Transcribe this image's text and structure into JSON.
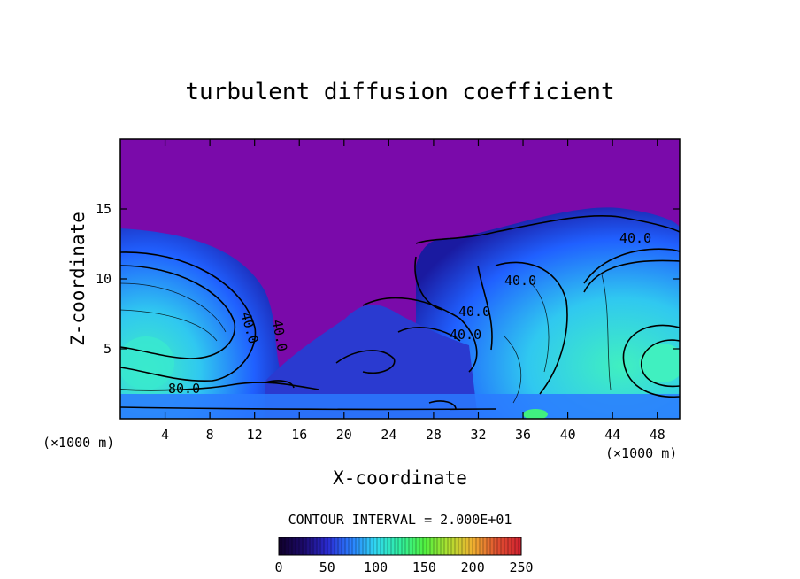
{
  "chart_data": {
    "type": "heatmap",
    "title": "turbulent diffusion coefficient",
    "xlabel": "X-coordinate",
    "ylabel": "Z-coordinate",
    "x_unit": "(×1000 m)",
    "y_unit": "(×1000 m)",
    "xlim": [
      0,
      50
    ],
    "ylim": [
      0,
      20
    ],
    "x_ticks": [
      4,
      8,
      12,
      16,
      20,
      24,
      28,
      32,
      36,
      40,
      44,
      48
    ],
    "y_ticks": [
      5,
      10,
      15
    ],
    "contour_interval_text": "CONTOUR INTERVAL = 2.000E+01",
    "contour_labels": [
      {
        "text": "80.0",
        "x": 6.3,
        "z": 2.2
      },
      {
        "text": "40.0",
        "x": 11.5,
        "z": 7.5
      },
      {
        "text": "40.0",
        "x": 13.8,
        "z": 7.0
      },
      {
        "text": "40.0",
        "x": 35.5,
        "z": 10.0
      },
      {
        "text": "40.0",
        "x": 31.0,
        "z": 7.7
      },
      {
        "text": "40.0",
        "x": 30.0,
        "z": 6.0
      },
      {
        "text": "40.0",
        "x": 46.0,
        "z": 12.6
      }
    ],
    "colorbar": {
      "min": 0,
      "max": 250,
      "ticks": [
        "0",
        "50",
        "100",
        "150",
        "200",
        "250"
      ]
    }
  },
  "colors": {
    "background_field": "#7a0aaa",
    "dark_blue": "#1a1aa0",
    "mid_blue": "#2060ff",
    "cyan": "#40e0f0",
    "green": "#40f080"
  }
}
